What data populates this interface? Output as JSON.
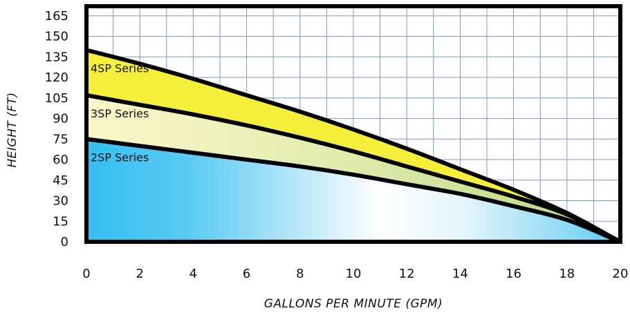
{
  "chart_data": {
    "type": "area",
    "title": "",
    "xlabel": "GALLONS PER MINUTE (GPM)",
    "ylabel": "HEIGHT (FT)",
    "xlim": [
      0,
      20
    ],
    "ylim": [
      0,
      172
    ],
    "x_ticks": [
      0,
      2,
      4,
      6,
      8,
      10,
      12,
      14,
      16,
      18,
      20
    ],
    "y_ticks": [
      0,
      15,
      30,
      45,
      60,
      75,
      90,
      105,
      120,
      135,
      150,
      165
    ],
    "grid": true,
    "x": [
      0,
      2,
      4,
      6,
      8,
      10,
      12,
      14,
      16,
      18,
      20
    ],
    "series": [
      {
        "name": "4SP Series",
        "values": [
          140,
          130,
          119,
          107,
          95,
          82,
          68,
          53,
          38,
          21,
          0
        ],
        "color": "#f5ef3a"
      },
      {
        "name": "3SP Series",
        "values": [
          107,
          100,
          93,
          85,
          76,
          66,
          55,
          44,
          33,
          20,
          0
        ],
        "color": "#d8eb9a"
      },
      {
        "name": "2SP Series",
        "values": [
          75,
          70,
          65,
          60,
          55,
          49,
          42,
          35,
          26,
          16,
          0
        ],
        "color": "#4cc4ee"
      }
    ]
  }
}
